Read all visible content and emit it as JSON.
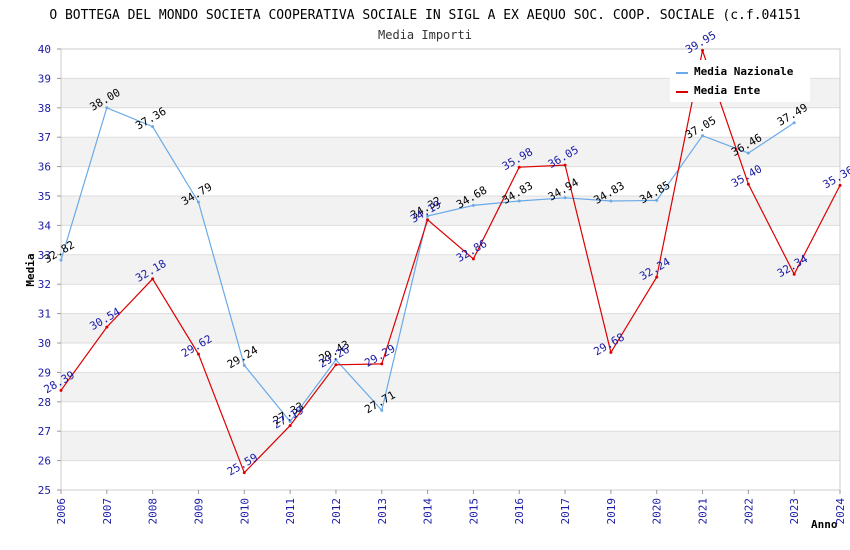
{
  "chart_data": {
    "type": "line",
    "title": "O BOTTEGA DEL MONDO SOCIETA COOPERATIVA SOCIALE IN SIGL A EX AEQUO SOC. COOP. SOCIALE (c.f.04151",
    "subtitle": "Media Importi",
    "xlabel": "Anno",
    "ylabel": "Media",
    "ylim": [
      25,
      40
    ],
    "yticks": [
      "25",
      "26",
      "27",
      "28",
      "29",
      "30",
      "31",
      "32",
      "33",
      "34",
      "35",
      "36",
      "37",
      "38",
      "39",
      "40"
    ],
    "categories": [
      "2006",
      "2007",
      "2008",
      "2009",
      "2010",
      "2011",
      "2012",
      "2013",
      "2014",
      "2015",
      "2016",
      "2017",
      "2019",
      "2020",
      "2021",
      "2022",
      "2023",
      "2024"
    ],
    "grid": true,
    "legend_position": "top-right",
    "series": [
      {
        "name": "Media Nazionale",
        "color": "#6aaae8",
        "values": [
          32.82,
          38.0,
          37.36,
          34.79,
          29.24,
          27.33,
          29.43,
          27.71,
          34.32,
          34.68,
          34.83,
          34.94,
          34.83,
          34.85,
          37.05,
          36.46,
          37.49,
          null
        ],
        "labels": [
          "32.82",
          "38.00",
          "37.36",
          "34.79",
          "29.24",
          "27.33",
          "29.43",
          "27.71",
          "34.32",
          "34.68",
          "34.83",
          "34.94",
          "34.83",
          "34.85",
          "37.05",
          "36.46",
          "37.49",
          ""
        ]
      },
      {
        "name": "Media Ente",
        "color": "#dd0000",
        "values": [
          28.39,
          30.54,
          32.18,
          29.62,
          25.59,
          27.19,
          29.26,
          29.29,
          34.19,
          32.86,
          35.98,
          36.05,
          29.68,
          32.24,
          39.95,
          35.4,
          32.34,
          35.36
        ],
        "labels": [
          "28.39",
          "30.54",
          "32.18",
          "29.62",
          "25.59",
          "27.19",
          "29.26",
          "29.29",
          "34.19",
          "32.86",
          "35.98",
          "36.05",
          "29.68",
          "32.24",
          "39.95",
          "35.40",
          "32.34",
          "35.36"
        ]
      }
    ]
  }
}
